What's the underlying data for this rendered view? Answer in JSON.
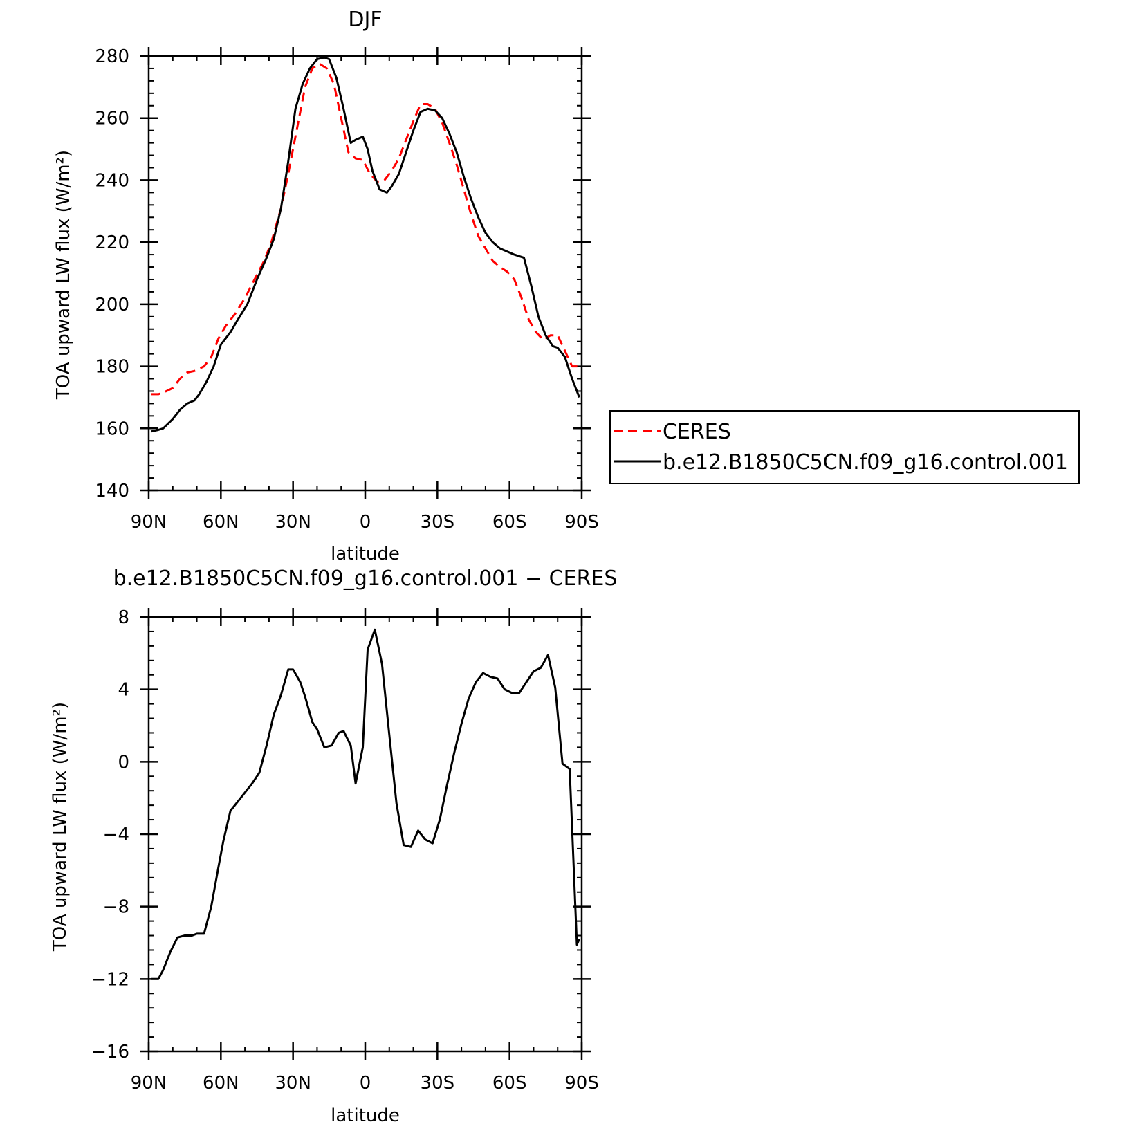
{
  "chart_data": [
    {
      "type": "line",
      "title": "DJF",
      "xlabel": "latitude",
      "ylabel": "TOA upward LW flux (W/m²)",
      "xlim": [
        -90,
        90
      ],
      "ylim": [
        140,
        280
      ],
      "x_ticks": [
        {
          "value": -90,
          "label": "90N"
        },
        {
          "value": -60,
          "label": "60N"
        },
        {
          "value": -30,
          "label": "30N"
        },
        {
          "value": 0,
          "label": "0"
        },
        {
          "value": 30,
          "label": "30S"
        },
        {
          "value": 60,
          "label": "60S"
        },
        {
          "value": 90,
          "label": "90S"
        }
      ],
      "y_ticks": [
        140,
        160,
        180,
        200,
        220,
        240,
        260,
        280
      ],
      "y_minor_step": 4,
      "x_minor_step": 10,
      "legend": {
        "placement": "outside-right"
      },
      "series": [
        {
          "name": "CERES",
          "color": "#ff0000",
          "dash": true,
          "x": [
            -89,
            -86,
            -84,
            -80,
            -77,
            -74,
            -71,
            -67,
            -64,
            -61,
            -58,
            -54,
            -50,
            -46,
            -42,
            -39,
            -35,
            -32,
            -28,
            -25,
            -22,
            -19,
            -16,
            -13,
            -10,
            -7,
            -4,
            -1,
            2,
            5,
            8,
            11,
            14,
            17,
            20,
            23,
            26,
            29,
            32,
            35,
            38,
            41,
            44,
            47,
            50,
            53,
            56,
            59,
            62,
            65,
            68,
            71,
            74,
            77,
            80,
            83,
            86,
            89
          ],
          "values": [
            171,
            171,
            171.5,
            173,
            176,
            178,
            178.5,
            180,
            183,
            189,
            193,
            197,
            202,
            208,
            214,
            220,
            231,
            242,
            258,
            270,
            276,
            277.5,
            276,
            271,
            260,
            249,
            247,
            246.5,
            242,
            239.5,
            240,
            243,
            247,
            253,
            259,
            264.5,
            264.5,
            263,
            258.5,
            252,
            245,
            237,
            229,
            222,
            218,
            214,
            212,
            210.5,
            208,
            202,
            195,
            191,
            188.5,
            190,
            190,
            185,
            180,
            180
          ]
        },
        {
          "name": "b.e12.B1850C5CN.f09_g16.control.001",
          "color": "#000000",
          "dash": false,
          "x": [
            -89,
            -86,
            -84,
            -80,
            -77,
            -74,
            -71,
            -69,
            -66,
            -63,
            -60,
            -56,
            -53,
            -49,
            -45,
            -41,
            -38,
            -35,
            -32,
            -29,
            -26,
            -23,
            -20,
            -17,
            -15,
            -12,
            -9,
            -6,
            -4,
            -1,
            1,
            3,
            6,
            9,
            11,
            14,
            17,
            20,
            23,
            26,
            29,
            32,
            35,
            38,
            41,
            44,
            47,
            50,
            53,
            56,
            59,
            62,
            66,
            69,
            72,
            75,
            78,
            80,
            83,
            86,
            89
          ],
          "values": [
            159,
            159.5,
            160,
            163,
            166,
            168,
            169,
            171,
            175,
            180,
            187,
            191,
            195,
            200,
            208,
            215,
            221,
            231,
            246,
            263,
            271,
            276,
            279,
            279.5,
            279,
            273,
            263,
            252,
            253,
            254,
            250,
            243,
            237,
            236,
            238,
            242,
            249,
            256,
            262,
            263,
            262.5,
            260,
            255,
            249,
            241,
            234,
            228,
            223,
            220,
            218,
            217,
            216,
            215,
            206,
            196,
            190,
            186.5,
            186,
            183,
            176,
            170
          ]
        }
      ]
    },
    {
      "type": "line",
      "title": "b.e12.B1850C5CN.f09_g16.control.001 − CERES",
      "xlabel": "latitude",
      "ylabel": "TOA upward LW flux (W/m²)",
      "xlim": [
        -90,
        90
      ],
      "ylim": [
        -16,
        8
      ],
      "x_ticks": [
        {
          "value": -90,
          "label": "90N"
        },
        {
          "value": -60,
          "label": "60N"
        },
        {
          "value": -30,
          "label": "30N"
        },
        {
          "value": 0,
          "label": "0"
        },
        {
          "value": 30,
          "label": "30S"
        },
        {
          "value": 60,
          "label": "60S"
        },
        {
          "value": 90,
          "label": "90S"
        }
      ],
      "y_ticks": [
        -16,
        -12,
        -8,
        -4,
        0,
        4,
        8
      ],
      "y_ticks_labels": [
        "−16",
        "−12",
        "−8",
        "−4",
        "0",
        "4",
        "8"
      ],
      "y_minor_step": 0.8,
      "x_minor_step": 10,
      "series": [
        {
          "name": "",
          "color": "#000000",
          "dash": false,
          "x": [
            -89,
            -86,
            -84,
            -81,
            -78,
            -75,
            -72,
            -70,
            -67,
            -64,
            -61,
            -59,
            -56,
            -53,
            -50,
            -47,
            -44,
            -41,
            -38,
            -35,
            -32,
            -30,
            -27,
            -25,
            -22,
            -20,
            -17,
            -14,
            -11,
            -9,
            -6,
            -4,
            -1,
            1,
            4,
            7,
            10,
            13,
            16,
            19,
            22,
            25,
            28,
            31,
            34,
            37,
            40,
            43,
            46,
            49,
            52,
            55,
            58,
            61,
            64,
            67,
            70,
            73,
            76,
            79,
            82,
            85,
            88,
            89
          ],
          "values": [
            -12,
            -12,
            -11.5,
            -10.5,
            -9.7,
            -9.6,
            -9.6,
            -9.5,
            -9.5,
            -8.0,
            -5.8,
            -4.4,
            -2.7,
            -2.2,
            -1.7,
            -1.2,
            -0.6,
            0.9,
            2.6,
            3.7,
            5.1,
            5.1,
            4.4,
            3.6,
            2.2,
            1.8,
            0.8,
            0.9,
            1.6,
            1.7,
            0.9,
            -1.2,
            0.8,
            6.2,
            7.3,
            5.4,
            1.5,
            -2.3,
            -4.6,
            -4.7,
            -3.8,
            -4.3,
            -4.5,
            -3.2,
            -1.3,
            0.5,
            2.1,
            3.5,
            4.4,
            4.9,
            4.7,
            4.6,
            4.0,
            3.8,
            3.8,
            4.4,
            5.0,
            5.2,
            5.9,
            4.1,
            -0.1,
            -0.4,
            -10.1,
            -9.8
          ]
        }
      ]
    }
  ]
}
